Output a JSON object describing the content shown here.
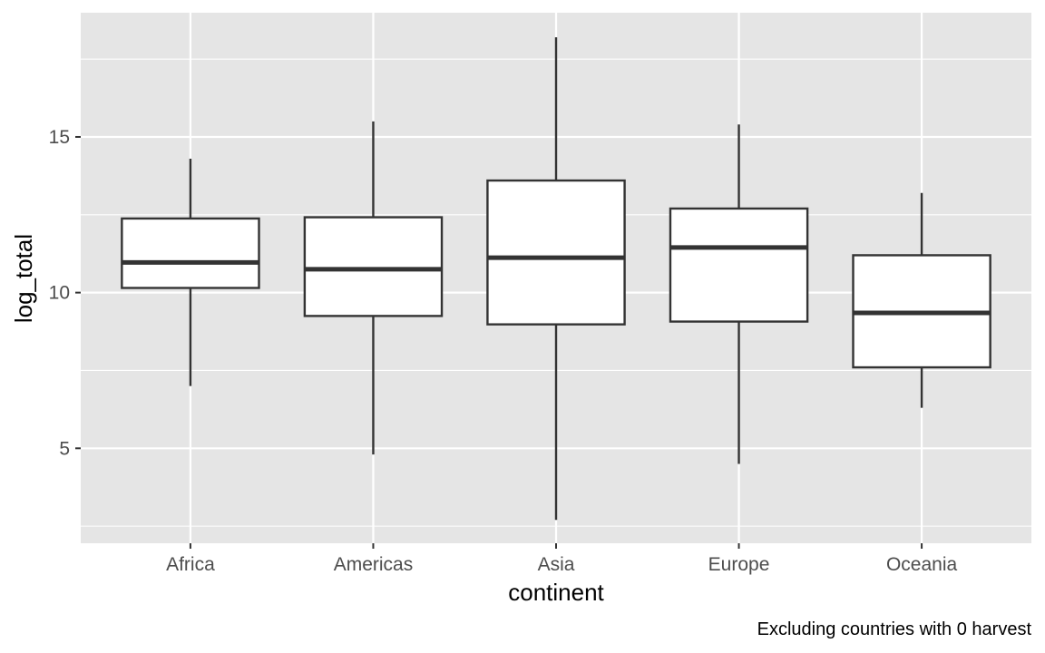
{
  "chart_data": {
    "type": "boxplot",
    "xlabel": "continent",
    "ylabel": "log_total",
    "caption": "Excluding countries with 0 harvest",
    "categories": [
      "Africa",
      "Americas",
      "Asia",
      "Europe",
      "Oceania"
    ],
    "boxes": [
      {
        "category": "Africa",
        "whisker_low": 7.0,
        "q1": 10.15,
        "median": 10.97,
        "q3": 12.38,
        "whisker_high": 14.3
      },
      {
        "category": "Americas",
        "whisker_low": 4.8,
        "q1": 9.25,
        "median": 10.75,
        "q3": 12.42,
        "whisker_high": 15.5
      },
      {
        "category": "Asia",
        "whisker_low": 2.7,
        "q1": 8.98,
        "median": 11.12,
        "q3": 13.6,
        "whisker_high": 18.2
      },
      {
        "category": "Europe",
        "whisker_low": 4.5,
        "q1": 9.07,
        "median": 11.45,
        "q3": 12.7,
        "whisker_high": 15.4
      },
      {
        "category": "Oceania",
        "whisker_low": 6.3,
        "q1": 7.6,
        "median": 9.35,
        "q3": 11.2,
        "whisker_high": 13.2
      }
    ],
    "ylim": [
      1.95,
      18.99
    ],
    "y_ticks": [
      5,
      10,
      15
    ],
    "y_minor_ticks": [
      2.5,
      7.5,
      12.5,
      17.5
    ],
    "grid": true,
    "colors": {
      "panel_background": "#e5e5e5",
      "grid_line": "#ffffff",
      "box_fill": "#ffffff",
      "box_stroke": "#333333",
      "tick_text": "#4d4d4d"
    }
  }
}
